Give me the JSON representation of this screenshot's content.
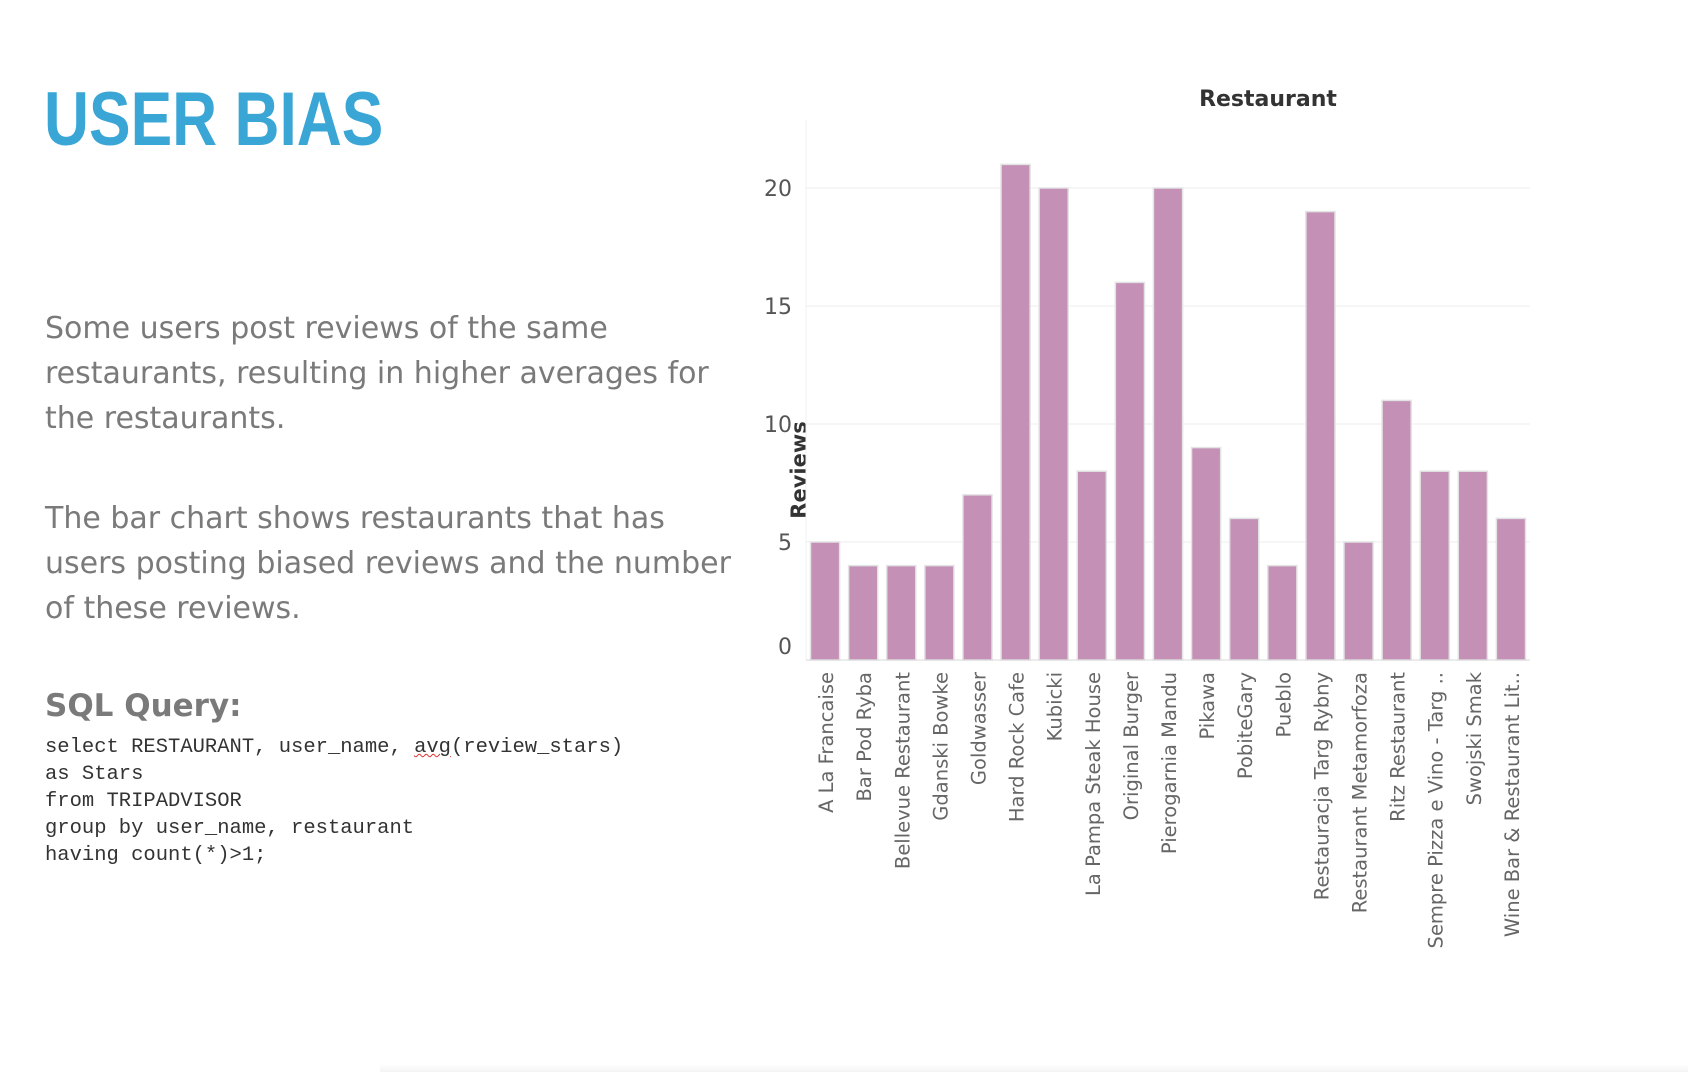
{
  "slide": {
    "title": "USER BIAS",
    "paragraph1": "Some users post reviews of the same restaurants, resulting in higher averages for the restaurants.",
    "paragraph2": "The bar chart shows restaurants that has users posting biased reviews and the number of these reviews.",
    "sql_heading": "SQL Query:",
    "sql_lines": [
      "select RESTAURANT, user_name, avg(review_stars)",
      "as Stars",
      "from TRIPADVISOR",
      "group by user_name, restaurant",
      "having count(*)>1;"
    ],
    "sql_highlight_word": "avg",
    "accent_color": "#3aa6d6",
    "text_color": "#7a7a7a"
  },
  "chart_data": {
    "type": "bar",
    "title": "Restaurant",
    "ylabel": "Reviews",
    "xlabel": "",
    "ylim": [
      0,
      23
    ],
    "yticks": [
      0,
      5,
      10,
      15,
      20
    ],
    "grid": true,
    "bar_color": "#c490b6",
    "categories": [
      "A La Francaise",
      "Bar Pod Ryba",
      "Bellevue Restaurant",
      "Gdanski Bowke",
      "Goldwasser",
      "Hard Rock Cafe",
      "Kubicki",
      "La Pampa Steak House",
      "Original Burger",
      "Pierogarnia Mandu",
      "Pikawa",
      "PobiteGary",
      "Pueblo",
      "Restauracja Targ Rybny",
      "Restaurant Metamorfoza",
      "Ritz Restaurant",
      "Sempre Pizza e Vino - Targ ..",
      "Swojski Smak",
      "Wine Bar & Restaurant Lit.."
    ],
    "values": [
      5,
      4,
      4,
      4,
      7,
      21,
      20,
      8,
      16,
      20,
      9,
      6,
      4,
      19,
      5,
      11,
      8,
      8,
      6
    ]
  }
}
